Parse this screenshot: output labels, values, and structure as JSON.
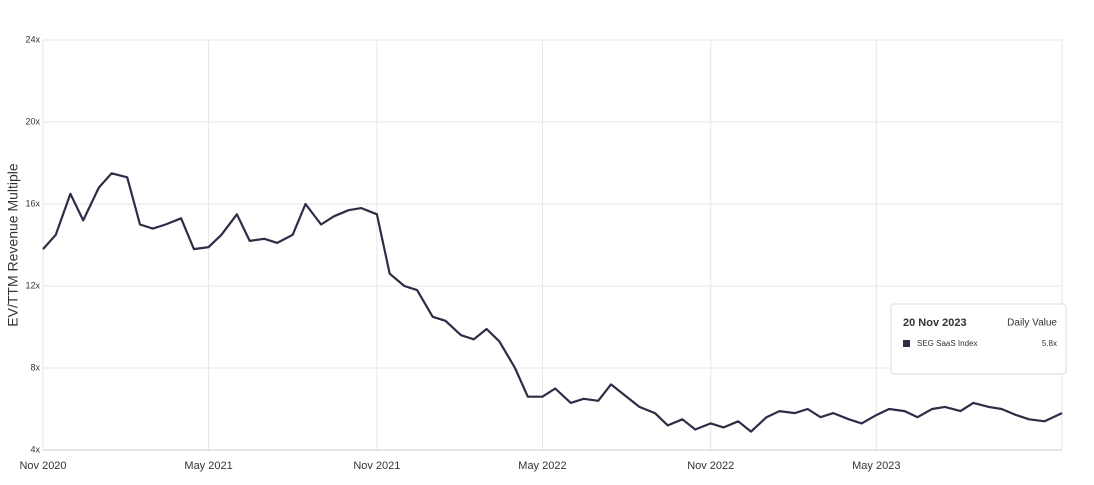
{
  "chart_data": {
    "type": "line",
    "y_label": "EV/TTM Revenue Multiple",
    "x": [
      "2020-11-01",
      "2020-11-15",
      "2020-12-01",
      "2020-12-15",
      "2021-01-01",
      "2021-01-15",
      "2021-02-01",
      "2021-02-15",
      "2021-03-01",
      "2021-03-15",
      "2021-04-01",
      "2021-04-15",
      "2021-05-01",
      "2021-05-15",
      "2021-06-01",
      "2021-06-15",
      "2021-07-01",
      "2021-07-15",
      "2021-08-01",
      "2021-08-15",
      "2021-09-01",
      "2021-09-15",
      "2021-10-01",
      "2021-10-15",
      "2021-11-01",
      "2021-11-15",
      "2021-12-01",
      "2021-12-15",
      "2022-01-01",
      "2022-01-15",
      "2022-02-01",
      "2022-02-15",
      "2022-03-01",
      "2022-03-15",
      "2022-04-01",
      "2022-04-15",
      "2022-05-01",
      "2022-05-15",
      "2022-06-01",
      "2022-06-15",
      "2022-07-01",
      "2022-07-15",
      "2022-08-01",
      "2022-08-15",
      "2022-09-01",
      "2022-09-15",
      "2022-10-01",
      "2022-10-15",
      "2022-11-01",
      "2022-11-15",
      "2022-12-01",
      "2022-12-15",
      "2023-01-01",
      "2023-01-15",
      "2023-02-01",
      "2023-02-15",
      "2023-03-01",
      "2023-03-15",
      "2023-04-01",
      "2023-04-15",
      "2023-05-01",
      "2023-05-15",
      "2023-06-01",
      "2023-06-15",
      "2023-07-01",
      "2023-07-15",
      "2023-08-01",
      "2023-08-15",
      "2023-09-01",
      "2023-09-15",
      "2023-10-01",
      "2023-10-15",
      "2023-11-01",
      "2023-11-20"
    ],
    "series": [
      {
        "name": "SEG SaaS Index",
        "color": "#2e2d45",
        "values": [
          13.8,
          14.5,
          16.5,
          15.2,
          16.8,
          17.5,
          17.3,
          15.0,
          14.8,
          15.0,
          15.3,
          13.8,
          13.9,
          14.5,
          15.5,
          14.2,
          14.3,
          14.1,
          14.5,
          16.0,
          15.0,
          15.4,
          15.7,
          15.8,
          15.5,
          12.6,
          12.0,
          11.8,
          10.5,
          10.3,
          9.6,
          9.4,
          9.9,
          9.3,
          8.0,
          6.6,
          6.6,
          7.0,
          6.3,
          6.5,
          6.4,
          7.2,
          6.6,
          6.1,
          5.8,
          5.2,
          5.5,
          5.0,
          5.3,
          5.1,
          5.4,
          4.9,
          5.6,
          5.9,
          5.8,
          6.0,
          5.6,
          5.8,
          5.5,
          5.3,
          5.7,
          6.0,
          5.9,
          5.6,
          6.0,
          6.1,
          5.9,
          6.3,
          6.1,
          6.0,
          5.7,
          5.5,
          5.4,
          5.8
        ]
      }
    ],
    "xlim": [
      "2020-11-01",
      "2023-11-20"
    ],
    "xticks": [
      {
        "value": "2020-11-01",
        "label": "Nov 2020"
      },
      {
        "value": "2021-05-01",
        "label": "May 2021"
      },
      {
        "value": "2021-11-01",
        "label": "Nov 2021"
      },
      {
        "value": "2022-05-01",
        "label": "May 2022"
      },
      {
        "value": "2022-11-01",
        "label": "Nov 2022"
      },
      {
        "value": "2023-05-01",
        "label": "May 2023"
      }
    ],
    "ylim": [
      4,
      24
    ],
    "yticks": [
      {
        "value": 4,
        "label": "4x"
      },
      {
        "value": 8,
        "label": "8x"
      },
      {
        "value": 12,
        "label": "12x"
      },
      {
        "value": 16,
        "label": "16x"
      },
      {
        "value": 20,
        "label": "20x"
      },
      {
        "value": 24,
        "label": "24x"
      }
    ],
    "grid": true,
    "tooltip": {
      "title": "20 Nov 2023",
      "header": "Daily Value",
      "value_label": "5.8x"
    }
  }
}
